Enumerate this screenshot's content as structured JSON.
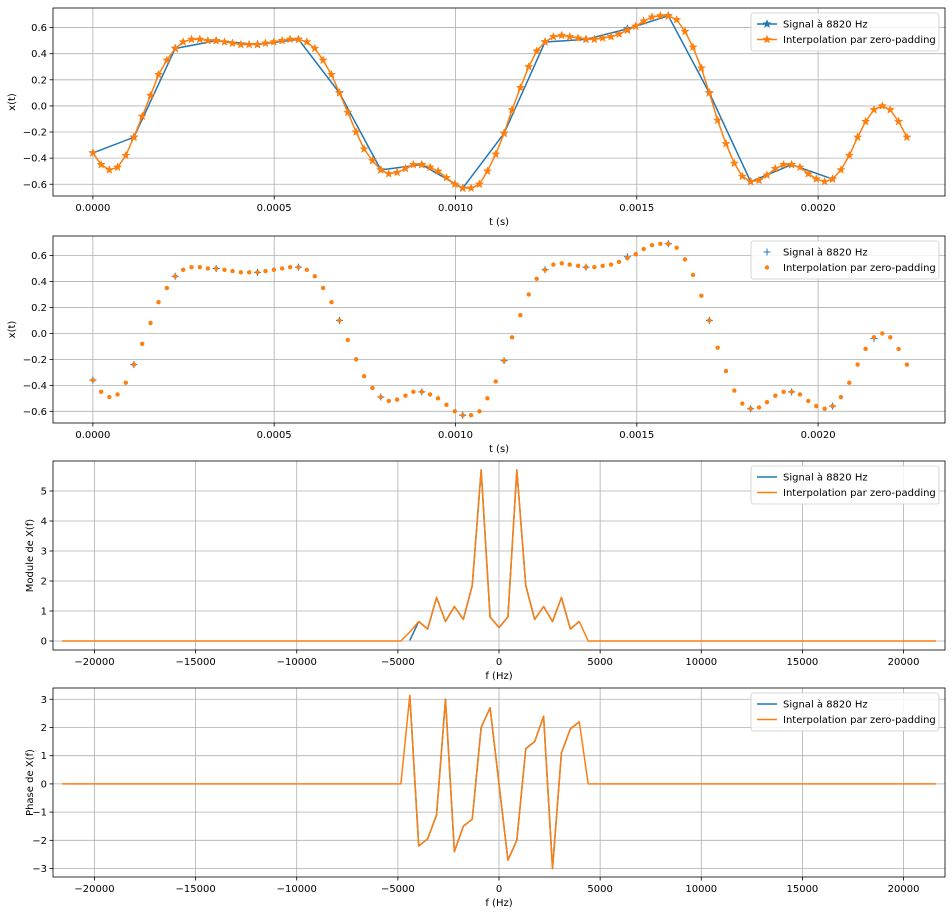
{
  "colors": {
    "signal": "#1f77b4",
    "interp": "#ff7f0e",
    "grid": "#b0b0b0",
    "axis": "#000000"
  },
  "chart_data": [
    {
      "type": "line",
      "xlabel": "t (s)",
      "ylabel": "x(t)",
      "xlim": [
        -0.00011,
        0.00235
      ],
      "ylim": [
        -0.69,
        0.75
      ],
      "xticks": [
        0,
        0.0005,
        0.001,
        0.0015,
        0.002
      ],
      "xtick_labels": [
        "0.0000",
        "0.0005",
        "0.0010",
        "0.0015",
        "0.0020"
      ],
      "yticks": [
        -0.6,
        -0.4,
        -0.2,
        0.0,
        0.2,
        0.4,
        0.6
      ],
      "ytick_labels": [
        "−0.6",
        "−0.4",
        "−0.2",
        "0.0",
        "0.2",
        "0.4",
        "0.6"
      ],
      "grid": true,
      "legend": "top-right",
      "series": [
        {
          "name": "Signal à 8820 Hz",
          "color": "#1f77b4",
          "line": true,
          "marker": "star",
          "x": [
            0,
            0.000113,
            0.000227,
            0.00034,
            0.000454,
            0.000567,
            0.00068,
            0.000794,
            0.000907,
            0.00102,
            0.001134,
            0.001247,
            0.00136,
            0.001474,
            0.001587,
            0.0017,
            0.001814,
            0.001927,
            0.00204
          ],
          "y": [
            -0.36,
            -0.24,
            0.44,
            0.5,
            0.47,
            0.51,
            0.1,
            -0.49,
            -0.45,
            -0.63,
            -0.21,
            0.49,
            0.51,
            0.59,
            0.69,
            0.1,
            -0.58,
            -0.45,
            -0.56
          ]
        },
        {
          "name": "Interpolation par zero-padding",
          "color": "#ff7f0e",
          "line": true,
          "marker": "star",
          "x": [
            0,
            2.27e-05,
            4.54e-05,
            6.8e-05,
            9.07e-05,
            0.000113,
            0.000136,
            0.000159,
            0.000181,
            0.000204,
            0.000227,
            0.000249,
            0.000272,
            0.000295,
            0.000317,
            0.00034,
            0.000363,
            0.000385,
            0.000408,
            0.000431,
            0.000454,
            0.000476,
            0.000499,
            0.000522,
            0.000544,
            0.000567,
            0.00059,
            0.000612,
            0.000635,
            0.000658,
            0.00068,
            0.000703,
            0.000726,
            0.000748,
            0.000771,
            0.000794,
            0.000816,
            0.000839,
            0.000862,
            0.000884,
            0.000907,
            0.00093,
            0.000952,
            0.000975,
            0.000998,
            0.00102,
            0.001043,
            0.001066,
            0.001088,
            0.001111,
            0.001134,
            0.001156,
            0.001179,
            0.001202,
            0.001224,
            0.001247,
            0.00127,
            0.001293,
            0.001315,
            0.001338,
            0.00136,
            0.001383,
            0.001406,
            0.001429,
            0.001451,
            0.001474,
            0.001497,
            0.001519,
            0.001542,
            0.001565,
            0.001587,
            0.00161,
            0.001633,
            0.001655,
            0.001678,
            0.0017,
            0.001723,
            0.001746,
            0.001769,
            0.001791,
            0.001814,
            0.001837,
            0.001859,
            0.001882,
            0.001905,
            0.001927,
            0.00195,
            0.001973,
            0.001995,
            0.002018,
            0.00204,
            0.002063,
            0.002086,
            0.002109,
            0.002131,
            0.002154,
            0.002177,
            0.002199,
            0.002222,
            0.002245
          ],
          "y": [
            -0.36,
            -0.45,
            -0.49,
            -0.47,
            -0.38,
            -0.24,
            -0.08,
            0.08,
            0.24,
            0.35,
            0.44,
            0.49,
            0.51,
            0.51,
            0.5,
            0.5,
            0.49,
            0.48,
            0.47,
            0.47,
            0.47,
            0.48,
            0.49,
            0.5,
            0.51,
            0.51,
            0.49,
            0.44,
            0.35,
            0.24,
            0.1,
            -0.05,
            -0.2,
            -0.33,
            -0.42,
            -0.49,
            -0.52,
            -0.51,
            -0.48,
            -0.45,
            -0.45,
            -0.47,
            -0.5,
            -0.55,
            -0.6,
            -0.63,
            -0.63,
            -0.6,
            -0.5,
            -0.37,
            -0.21,
            -0.03,
            0.14,
            0.3,
            0.42,
            0.49,
            0.53,
            0.54,
            0.53,
            0.52,
            0.51,
            0.51,
            0.52,
            0.53,
            0.55,
            0.58,
            0.61,
            0.65,
            0.68,
            0.69,
            0.69,
            0.66,
            0.57,
            0.45,
            0.29,
            0.1,
            -0.11,
            -0.29,
            -0.44,
            -0.54,
            -0.58,
            -0.57,
            -0.53,
            -0.48,
            -0.45,
            -0.45,
            -0.47,
            -0.52,
            -0.56,
            -0.58,
            -0.56,
            -0.49,
            -0.38,
            -0.24,
            -0.12,
            -0.03,
            0.0,
            -0.03,
            -0.12,
            -0.24
          ]
        }
      ]
    },
    {
      "type": "scatter",
      "xlabel": "t (s)",
      "ylabel": "x(t)",
      "xlim": [
        -0.00011,
        0.00235
      ],
      "ylim": [
        -0.69,
        0.75
      ],
      "xticks": [
        0,
        0.0005,
        0.001,
        0.0015,
        0.002
      ],
      "xtick_labels": [
        "0.0000",
        "0.0005",
        "0.0010",
        "0.0015",
        "0.0020"
      ],
      "yticks": [
        -0.6,
        -0.4,
        -0.2,
        0.0,
        0.2,
        0.4,
        0.6
      ],
      "ytick_labels": [
        "−0.6",
        "−0.4",
        "−0.2",
        "0.0",
        "0.2",
        "0.4",
        "0.6"
      ],
      "grid": true,
      "legend": "top-right",
      "series": [
        {
          "name": "Signal à 8820 Hz",
          "color": "#1f77b4",
          "line": false,
          "marker": "plus",
          "x": [
            0,
            0.000113,
            0.000227,
            0.00034,
            0.000454,
            0.000567,
            0.00068,
            0.000794,
            0.000907,
            0.00102,
            0.001134,
            0.001247,
            0.00136,
            0.001474,
            0.001587,
            0.0017,
            0.001814,
            0.001927,
            0.00204,
            0.002154
          ],
          "y": [
            -0.36,
            -0.24,
            0.44,
            0.5,
            0.47,
            0.51,
            0.1,
            -0.49,
            -0.45,
            -0.63,
            -0.21,
            0.49,
            0.51,
            0.59,
            0.69,
            0.1,
            -0.58,
            -0.45,
            -0.56,
            -0.04
          ]
        },
        {
          "name": "Interpolation par zero-padding",
          "color": "#ff7f0e",
          "line": false,
          "marker": "dot",
          "x": [
            0,
            2.27e-05,
            4.54e-05,
            6.8e-05,
            9.07e-05,
            0.000113,
            0.000136,
            0.000159,
            0.000181,
            0.000204,
            0.000227,
            0.000249,
            0.000272,
            0.000295,
            0.000317,
            0.00034,
            0.000363,
            0.000385,
            0.000408,
            0.000431,
            0.000454,
            0.000476,
            0.000499,
            0.000522,
            0.000544,
            0.000567,
            0.00059,
            0.000612,
            0.000635,
            0.000658,
            0.00068,
            0.000703,
            0.000726,
            0.000748,
            0.000771,
            0.000794,
            0.000816,
            0.000839,
            0.000862,
            0.000884,
            0.000907,
            0.00093,
            0.000952,
            0.000975,
            0.000998,
            0.00102,
            0.001043,
            0.001066,
            0.001088,
            0.001111,
            0.001134,
            0.001156,
            0.001179,
            0.001202,
            0.001224,
            0.001247,
            0.00127,
            0.001293,
            0.001315,
            0.001338,
            0.00136,
            0.001383,
            0.001406,
            0.001429,
            0.001451,
            0.001474,
            0.001497,
            0.001519,
            0.001542,
            0.001565,
            0.001587,
            0.00161,
            0.001633,
            0.001655,
            0.001678,
            0.0017,
            0.001723,
            0.001746,
            0.001769,
            0.001791,
            0.001814,
            0.001837,
            0.001859,
            0.001882,
            0.001905,
            0.001927,
            0.00195,
            0.001973,
            0.001995,
            0.002018,
            0.00204,
            0.002063,
            0.002086,
            0.002109,
            0.002131,
            0.002154,
            0.002177,
            0.002199,
            0.002222,
            0.002245
          ],
          "y": [
            -0.36,
            -0.45,
            -0.49,
            -0.47,
            -0.38,
            -0.24,
            -0.08,
            0.08,
            0.24,
            0.35,
            0.44,
            0.49,
            0.51,
            0.51,
            0.5,
            0.5,
            0.49,
            0.48,
            0.47,
            0.47,
            0.47,
            0.48,
            0.49,
            0.5,
            0.51,
            0.51,
            0.49,
            0.44,
            0.35,
            0.24,
            0.1,
            -0.05,
            -0.2,
            -0.33,
            -0.42,
            -0.49,
            -0.52,
            -0.51,
            -0.48,
            -0.45,
            -0.45,
            -0.47,
            -0.5,
            -0.55,
            -0.6,
            -0.63,
            -0.63,
            -0.6,
            -0.5,
            -0.37,
            -0.21,
            -0.03,
            0.14,
            0.3,
            0.42,
            0.49,
            0.53,
            0.54,
            0.53,
            0.52,
            0.51,
            0.51,
            0.52,
            0.53,
            0.55,
            0.58,
            0.61,
            0.65,
            0.68,
            0.69,
            0.69,
            0.66,
            0.57,
            0.45,
            0.29,
            0.1,
            -0.11,
            -0.29,
            -0.44,
            -0.54,
            -0.58,
            -0.57,
            -0.53,
            -0.48,
            -0.45,
            -0.45,
            -0.47,
            -0.52,
            -0.56,
            -0.58,
            -0.56,
            -0.49,
            -0.38,
            -0.24,
            -0.12,
            -0.03,
            0.0,
            -0.03,
            -0.12,
            -0.24
          ]
        }
      ]
    },
    {
      "type": "line",
      "xlabel": "f (Hz)",
      "ylabel": "Module de X(f)",
      "xlim": [
        -22050,
        22050
      ],
      "ylim": [
        -0.3,
        6.0
      ],
      "xticks": [
        -20000,
        -15000,
        -10000,
        -5000,
        0,
        5000,
        10000,
        15000,
        20000
      ],
      "xtick_labels": [
        "−20000",
        "−15000",
        "−10000",
        "−5000",
        "0",
        "5000",
        "10000",
        "15000",
        "20000"
      ],
      "yticks": [
        0,
        1,
        2,
        3,
        4,
        5
      ],
      "ytick_labels": [
        "0",
        "1",
        "2",
        "3",
        "4",
        "5"
      ],
      "grid": true,
      "legend": "top-right",
      "series": [
        {
          "name": "Signal à 8820 Hz",
          "color": "#1f77b4",
          "line": true,
          "marker": "none",
          "x": [
            -4410,
            -3969,
            -3528,
            -3087,
            -2646,
            -2205,
            -1764,
            -1323,
            -882,
            -441,
            0,
            441,
            882,
            1323,
            1764,
            2205,
            2646,
            3087,
            3528,
            3969
          ],
          "y": [
            0.02,
            0.65,
            0.4,
            1.45,
            0.65,
            1.15,
            0.72,
            1.85,
            5.7,
            0.8,
            0.45,
            0.8,
            5.7,
            1.85,
            0.72,
            1.15,
            0.65,
            1.45,
            0.4,
            0.65
          ]
        },
        {
          "name": "Interpolation par zero-padding",
          "color": "#ff7f0e",
          "line": true,
          "marker": "none",
          "x": [
            -21609,
            -4851,
            -4410,
            -3969,
            -3528,
            -3087,
            -2646,
            -2205,
            -1764,
            -1323,
            -882,
            -441,
            0,
            441,
            882,
            1323,
            1764,
            2205,
            2646,
            3087,
            3528,
            3969,
            4410,
            21609
          ],
          "y": [
            0,
            0,
            0.3,
            0.65,
            0.4,
            1.45,
            0.65,
            1.15,
            0.72,
            1.85,
            5.7,
            0.8,
            0.45,
            0.8,
            5.7,
            1.85,
            0.72,
            1.15,
            0.65,
            1.45,
            0.4,
            0.65,
            0,
            0
          ]
        }
      ]
    },
    {
      "type": "line",
      "xlabel": "f (Hz)",
      "ylabel": "Phase de X(f)",
      "xlim": [
        -22050,
        22050
      ],
      "ylim": [
        -3.3,
        3.4
      ],
      "xticks": [
        -20000,
        -15000,
        -10000,
        -5000,
        0,
        5000,
        10000,
        15000,
        20000
      ],
      "xtick_labels": [
        "−20000",
        "−15000",
        "−10000",
        "−5000",
        "0",
        "5000",
        "10000",
        "15000",
        "20000"
      ],
      "yticks": [
        -3,
        -2,
        -1,
        0,
        1,
        2,
        3
      ],
      "ytick_labels": [
        "−3",
        "−2",
        "−1",
        "0",
        "1",
        "2",
        "3"
      ],
      "grid": true,
      "legend": "top-right",
      "series": [
        {
          "name": "Signal à 8820 Hz",
          "color": "#1f77b4",
          "line": true,
          "marker": "none",
          "x": [
            -4410,
            -3969,
            -3528,
            -3087,
            -2646,
            -2205,
            -1764,
            -1323,
            -882,
            -441,
            0,
            441,
            882,
            1323,
            1764,
            2205,
            2646,
            3087,
            3528,
            3969
          ],
          "y": [
            3.14,
            -2.2,
            -1.95,
            -1.1,
            3.0,
            -2.4,
            -1.5,
            -1.25,
            2.0,
            2.7,
            0.0,
            -2.7,
            -2.0,
            1.25,
            1.5,
            2.4,
            -3.0,
            1.1,
            1.95,
            2.2
          ]
        },
        {
          "name": "Interpolation par zero-padding",
          "color": "#ff7f0e",
          "line": true,
          "marker": "none",
          "x": [
            -21609,
            -4851,
            -4410,
            -3969,
            -3528,
            -3087,
            -2646,
            -2205,
            -1764,
            -1323,
            -882,
            -441,
            0,
            441,
            882,
            1323,
            1764,
            2205,
            2646,
            3087,
            3528,
            3969,
            4410,
            21609
          ],
          "y": [
            0,
            0,
            3.14,
            -2.2,
            -1.95,
            -1.1,
            3.0,
            -2.4,
            -1.5,
            -1.25,
            2.0,
            2.7,
            0.0,
            -2.7,
            -2.0,
            1.25,
            1.5,
            2.4,
            -3.0,
            1.1,
            1.95,
            2.2,
            0,
            0
          ]
        }
      ]
    }
  ]
}
